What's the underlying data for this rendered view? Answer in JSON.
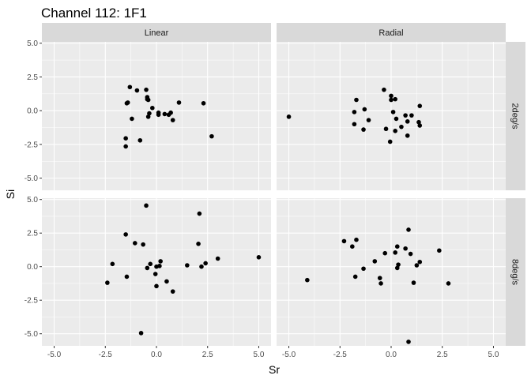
{
  "chart_data": {
    "type": "scatter",
    "title": "Channel 112: 1F1",
    "xlabel": "Sr",
    "ylabel": "Si",
    "xlim": [
      -5.6,
      5.6
    ],
    "ylim": [
      -5.9,
      5.1
    ],
    "x_ticks": [
      -5.0,
      -2.5,
      0.0,
      2.5,
      5.0
    ],
    "x_tick_labels": [
      "-5.0",
      "-2.5",
      "0.0",
      "2.5",
      "5.0"
    ],
    "y_ticks": [
      -5.0,
      -2.5,
      0.0,
      2.5,
      5.0
    ],
    "y_tick_labels": [
      "-5.0",
      "-2.5",
      "0.0",
      "2.5",
      "5.0"
    ],
    "grid": true,
    "col_facets": [
      "Linear",
      "Radial"
    ],
    "row_facets": [
      "2deg/s",
      "8deg/s"
    ],
    "colors": {
      "panel_bg": "#ebebeb",
      "grid_major": "#ffffff",
      "strip_bg": "#d9d9d9",
      "point": "#000000",
      "tick": "#333333"
    },
    "panels": [
      {
        "col": "Linear",
        "row": "2deg/s",
        "points": [
          [
            -1.3,
            1.75
          ],
          [
            -0.95,
            1.5
          ],
          [
            -0.5,
            1.55
          ],
          [
            -0.45,
            1.0
          ],
          [
            -0.4,
            0.8
          ],
          [
            -0.45,
            0.85
          ],
          [
            -1.4,
            0.6
          ],
          [
            -1.45,
            0.55
          ],
          [
            1.1,
            0.6
          ],
          [
            2.3,
            0.55
          ],
          [
            -0.2,
            0.2
          ],
          [
            0.1,
            -0.15
          ],
          [
            0.1,
            -0.3
          ],
          [
            0.6,
            -0.3
          ],
          [
            0.7,
            -0.15
          ],
          [
            0.4,
            -0.25
          ],
          [
            -0.35,
            -0.2
          ],
          [
            -0.4,
            -0.45
          ],
          [
            0.8,
            -0.7
          ],
          [
            -1.2,
            -0.6
          ],
          [
            -1.5,
            -2.05
          ],
          [
            -0.8,
            -2.2
          ],
          [
            -1.5,
            -2.65
          ],
          [
            2.7,
            -1.9
          ]
        ]
      },
      {
        "col": "Radial",
        "row": "2deg/s",
        "points": [
          [
            -5.0,
            -0.45
          ],
          [
            -1.7,
            0.8
          ],
          [
            -0.35,
            1.55
          ],
          [
            0.0,
            1.1
          ],
          [
            0.0,
            0.8
          ],
          [
            0.2,
            0.85
          ],
          [
            1.4,
            0.35
          ],
          [
            -1.3,
            0.1
          ],
          [
            -1.8,
            -0.1
          ],
          [
            0.1,
            -0.1
          ],
          [
            0.7,
            -0.35
          ],
          [
            1.0,
            -0.35
          ],
          [
            0.25,
            -0.6
          ],
          [
            -1.1,
            -0.7
          ],
          [
            0.8,
            -0.8
          ],
          [
            1.35,
            -0.85
          ],
          [
            -1.8,
            -1.0
          ],
          [
            1.4,
            -1.1
          ],
          [
            0.5,
            -1.2
          ],
          [
            -0.25,
            -1.35
          ],
          [
            -1.35,
            -1.4
          ],
          [
            0.2,
            -1.5
          ],
          [
            0.8,
            -1.85
          ],
          [
            -0.05,
            -2.3
          ]
        ]
      },
      {
        "col": "Linear",
        "row": "8deg/s",
        "points": [
          [
            -0.5,
            4.55
          ],
          [
            2.1,
            3.95
          ],
          [
            -1.5,
            2.4
          ],
          [
            -1.05,
            1.75
          ],
          [
            -0.65,
            1.65
          ],
          [
            2.05,
            1.7
          ],
          [
            3.0,
            0.6
          ],
          [
            5.0,
            0.7
          ],
          [
            -2.15,
            0.2
          ],
          [
            0.2,
            0.4
          ],
          [
            -0.3,
            0.2
          ],
          [
            1.5,
            0.1
          ],
          [
            2.4,
            0.25
          ],
          [
            0.15,
            0.05
          ],
          [
            -0.45,
            -0.1
          ],
          [
            0.0,
            0.0
          ],
          [
            2.2,
            0.0
          ],
          [
            -1.45,
            -0.75
          ],
          [
            -0.05,
            -0.55
          ],
          [
            0.5,
            -1.1
          ],
          [
            -2.4,
            -1.2
          ],
          [
            0.0,
            -1.45
          ],
          [
            0.8,
            -1.85
          ],
          [
            -0.75,
            -4.95
          ]
        ]
      },
      {
        "col": "Radial",
        "row": "8deg/s",
        "points": [
          [
            0.85,
            2.75
          ],
          [
            -2.3,
            1.9
          ],
          [
            -1.7,
            2.0
          ],
          [
            -1.9,
            1.5
          ],
          [
            0.3,
            1.5
          ],
          [
            0.7,
            1.35
          ],
          [
            2.35,
            1.2
          ],
          [
            -0.3,
            1.0
          ],
          [
            0.2,
            1.05
          ],
          [
            0.95,
            0.95
          ],
          [
            -0.8,
            0.4
          ],
          [
            1.4,
            0.35
          ],
          [
            0.35,
            0.15
          ],
          [
            1.25,
            0.1
          ],
          [
            -1.35,
            -0.15
          ],
          [
            0.3,
            -0.1
          ],
          [
            -1.75,
            -0.75
          ],
          [
            -0.55,
            -0.85
          ],
          [
            -4.1,
            -1.0
          ],
          [
            -0.5,
            -1.25
          ],
          [
            1.1,
            -1.2
          ],
          [
            2.8,
            -1.25
          ],
          [
            0.85,
            -5.6
          ]
        ]
      }
    ]
  }
}
